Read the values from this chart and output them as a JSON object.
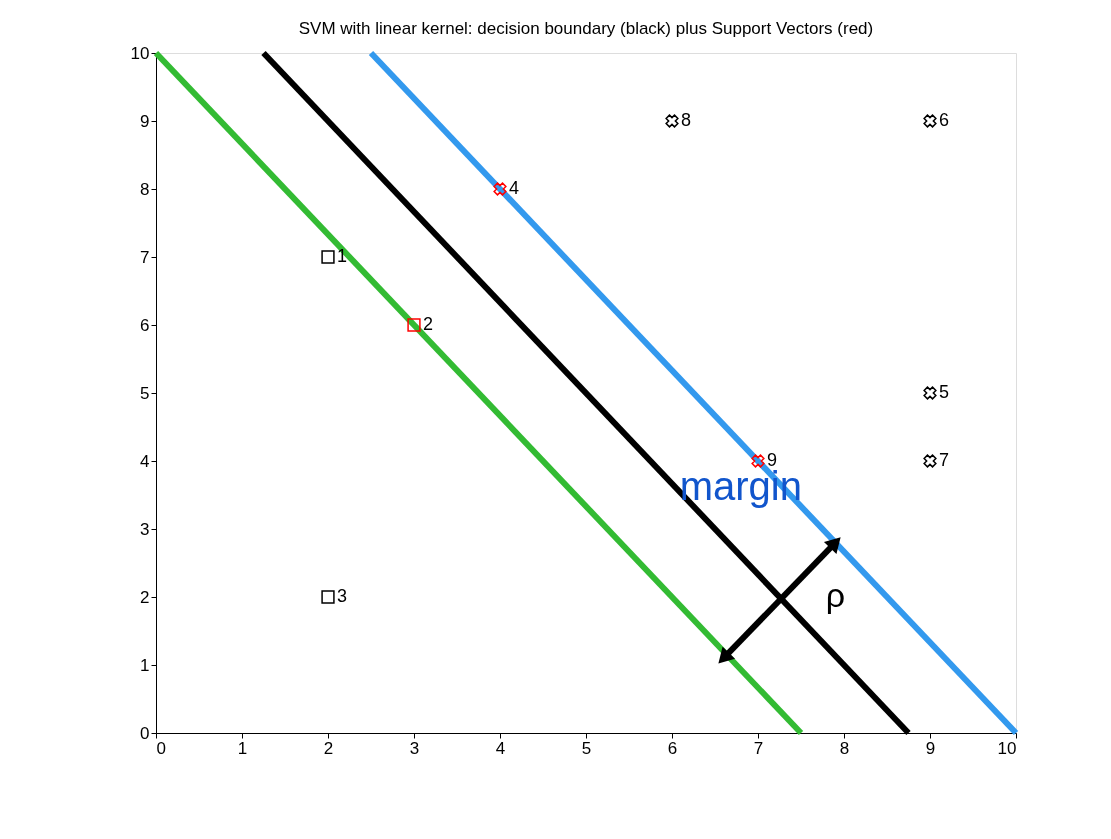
{
  "chart_data": {
    "type": "scatter",
    "title": "SVM with linear kernel: decision boundary (black) plus Support Vectors (red)",
    "xlim": [
      0,
      10
    ],
    "ylim": [
      0,
      10
    ],
    "xticks": [
      0,
      1,
      2,
      3,
      4,
      5,
      6,
      7,
      8,
      9,
      10
    ],
    "yticks": [
      0,
      1,
      2,
      3,
      4,
      5,
      6,
      7,
      8,
      9,
      10
    ],
    "grid": false,
    "series": [
      {
        "type": "line",
        "color": "#33bb33",
        "x": [
          0,
          7.5
        ],
        "values": [
          10,
          0
        ]
      },
      {
        "type": "line",
        "color": "#000000",
        "x": [
          1.25,
          8.75
        ],
        "values": [
          10,
          0
        ]
      },
      {
        "type": "line",
        "color": "#3399ee",
        "x": [
          2.5,
          10
        ],
        "values": [
          10,
          0
        ]
      },
      {
        "type": "line",
        "color": "#000000",
        "marker": "triangle",
        "x": [
          6.6,
          7.9
        ],
        "values": [
          1.1,
          2.8
        ]
      },
      {
        "marker": "square",
        "x": [
          2,
          3,
          2
        ],
        "values": [
          7,
          6,
          2
        ],
        "colors": [
          "#000000",
          "#ff0000",
          "#000000"
        ]
      },
      {
        "marker": "cross",
        "x": [
          4,
          9,
          9,
          9,
          6,
          7
        ],
        "values": [
          8,
          5,
          9,
          4,
          9,
          4
        ],
        "colors": [
          "#ff0000",
          "#000000",
          "#000000",
          "#000000",
          "#000000",
          "#ff0000"
        ]
      }
    ],
    "annotations": [
      {
        "text": "1",
        "x": 2,
        "y": 7
      },
      {
        "text": "2",
        "x": 3,
        "y": 6
      },
      {
        "text": "3",
        "x": 2,
        "y": 2
      },
      {
        "text": "4",
        "x": 4,
        "y": 8
      },
      {
        "text": "5",
        "x": 9,
        "y": 5
      },
      {
        "text": "6",
        "x": 9,
        "y": 9
      },
      {
        "text": "7",
        "x": 9,
        "y": 4
      },
      {
        "text": "8",
        "x": 6,
        "y": 9
      },
      {
        "text": "9",
        "x": 7,
        "y": 4
      },
      "margin",
      "ρ"
    ]
  }
}
